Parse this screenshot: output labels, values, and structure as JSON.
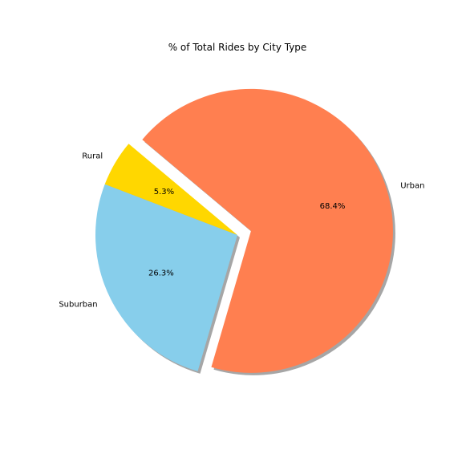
{
  "chart_data": {
    "type": "pie",
    "title": "% of Total Rides by City Type",
    "slices": [
      {
        "label": "Rural",
        "percent_label": "5.3%",
        "value": 5.3,
        "color": "#ffd700",
        "explode": false
      },
      {
        "label": "Suburban",
        "percent_label": "26.3%",
        "value": 26.3,
        "color": "#87ceeb",
        "explode": false
      },
      {
        "label": "Urban",
        "percent_label": "68.4%",
        "value": 68.4,
        "color": "#ff7f50",
        "explode": true
      }
    ],
    "shadow": true,
    "legend": "none"
  }
}
